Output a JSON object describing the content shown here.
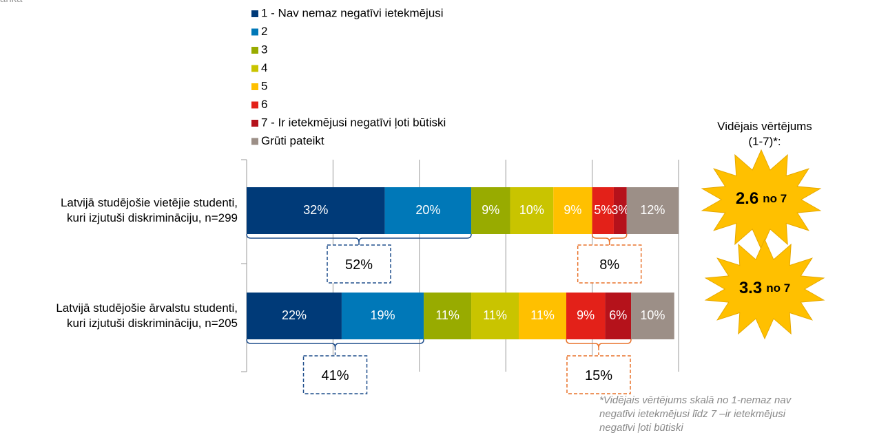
{
  "corner_text": "anka",
  "chart_data": {
    "type": "stacked_bar",
    "orientation": "horizontal",
    "categories": [
      "Latvijā studējošie vietējie studenti,\nkuri izjutuši diskrimināciju, n=299",
      "Latvijā studējošie ārvalstu studenti,\nkuri izjutuši diskrimināciju, n=205"
    ],
    "series": [
      {
        "name": "1 - Nav nemaz negatīvi ietekmējusi",
        "color": "#003a78",
        "values": [
          32,
          22
        ],
        "value_labels": [
          "32%",
          "22%"
        ]
      },
      {
        "name": "2",
        "color": "#0078b8",
        "values": [
          20,
          19
        ],
        "value_labels": [
          "20%",
          "19%"
        ]
      },
      {
        "name": "3",
        "color": "#98ab00",
        "values": [
          9,
          11
        ],
        "value_labels": [
          "9%",
          "11%"
        ]
      },
      {
        "name": "4",
        "color": "#c9c400",
        "values": [
          10,
          11
        ],
        "value_labels": [
          "10%",
          "11%"
        ]
      },
      {
        "name": "5",
        "color": "#ffc000",
        "values": [
          9,
          11
        ],
        "value_labels": [
          "9%",
          "11%"
        ]
      },
      {
        "name": "6",
        "color": "#e32119",
        "values": [
          5,
          9
        ],
        "value_labels": [
          "5%",
          "9%"
        ]
      },
      {
        "name": "7 - Ir ietekmējusi negatīvi ļoti būtiski",
        "color": "#b5121b",
        "values": [
          3,
          6
        ],
        "value_labels": [
          "3%",
          "6%"
        ]
      },
      {
        "name": "Grūti pateikt",
        "color": "#9c8f87",
        "values": [
          12,
          10
        ],
        "value_labels": [
          "12%",
          "10%"
        ]
      }
    ],
    "xlim": [
      0,
      100
    ],
    "xticks": [
      0,
      20,
      40,
      60,
      80,
      100
    ],
    "grid": true,
    "legend": "top",
    "annotations": {
      "low_sums": {
        "values": [
          52,
          41
        ],
        "labels": [
          "52%",
          "41%"
        ],
        "color": "#1f4e8c"
      },
      "high_sums": {
        "values": [
          8,
          15
        ],
        "labels": [
          "8%",
          "15%"
        ],
        "color": "#e8722a"
      }
    },
    "averages": {
      "title": "Vidējais vērtējums\n(1-7)*:",
      "values": [
        2.6,
        3.3
      ],
      "suffix": "no 7"
    },
    "footnote": "*Vidējais vērtējums skalā no 1-nemaz nav negatīvi ietekmējusi līdz 7 –ir ietekmējusi negatīvi ļoti būtiski"
  }
}
